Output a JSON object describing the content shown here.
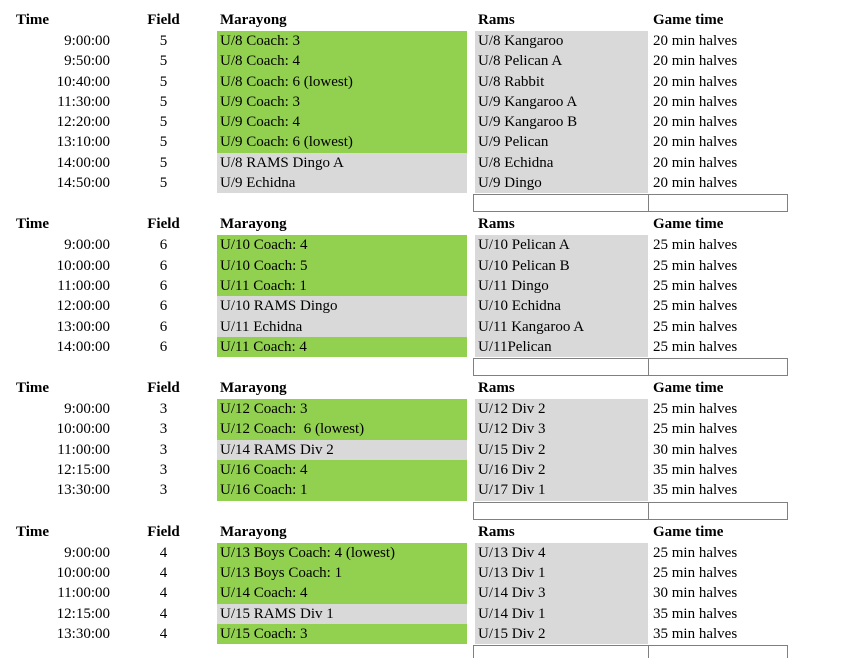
{
  "columns": {
    "time": "Time",
    "field": "Field",
    "marayong": "Marayong",
    "rams": "Rams",
    "game_time": "Game time"
  },
  "colors": {
    "home_highlight": "#92D050",
    "away_highlight": "#D9D9D9",
    "box_border": "#808080"
  },
  "sections": [
    {
      "field_number": "5",
      "rows": [
        {
          "time": "9:00:00",
          "field": "5",
          "marayong": "U/8 Coach: 3",
          "marayong_bg": "green",
          "rams": "U/8 Kangaroo",
          "game_time": "20 min halves"
        },
        {
          "time": "9:50:00",
          "field": "5",
          "marayong": "U/8 Coach: 4",
          "marayong_bg": "green",
          "rams": "U/8 Pelican A",
          "game_time": "20 min halves"
        },
        {
          "time": "10:40:00",
          "field": "5",
          "marayong": "U/8 Coach: 6 (lowest)",
          "marayong_bg": "green",
          "rams": "U/8 Rabbit",
          "game_time": "20 min halves"
        },
        {
          "time": "11:30:00",
          "field": "5",
          "marayong": "U/9 Coach: 3",
          "marayong_bg": "green",
          "rams": "U/9 Kangaroo A",
          "game_time": "20 min halves"
        },
        {
          "time": "12:20:00",
          "field": "5",
          "marayong": "U/9 Coach: 4",
          "marayong_bg": "green",
          "rams": "U/9 Kangaroo B",
          "game_time": "20 min halves"
        },
        {
          "time": "13:10:00",
          "field": "5",
          "marayong": "U/9 Coach: 6 (lowest)",
          "marayong_bg": "green",
          "rams": "U/9 Pelican",
          "game_time": "20 min halves"
        },
        {
          "time": "14:00:00",
          "field": "5",
          "marayong": "U/8 RAMS Dingo A",
          "marayong_bg": "gray",
          "rams": "U/8 Echidna",
          "game_time": "20 min halves"
        },
        {
          "time": "14:50:00",
          "field": "5",
          "marayong": "U/9 Echidna",
          "marayong_bg": "gray",
          "rams": "U/9 Dingo",
          "game_time": "20 min halves"
        }
      ]
    },
    {
      "field_number": "6",
      "rows": [
        {
          "time": "9:00:00",
          "field": "6",
          "marayong": "U/10 Coach: 4",
          "marayong_bg": "green",
          "rams": "U/10 Pelican A",
          "game_time": "25 min halves"
        },
        {
          "time": "10:00:00",
          "field": "6",
          "marayong": "U/10 Coach: 5",
          "marayong_bg": "green",
          "rams": "U/10 Pelican B",
          "game_time": "25 min halves"
        },
        {
          "time": "11:00:00",
          "field": "6",
          "marayong": "U/11 Coach: 1",
          "marayong_bg": "green",
          "rams": "U/11 Dingo",
          "game_time": "25 min halves"
        },
        {
          "time": "12:00:00",
          "field": "6",
          "marayong": "U/10 RAMS Dingo",
          "marayong_bg": "gray",
          "rams": "U/10 Echidna",
          "game_time": "25 min halves"
        },
        {
          "time": "13:00:00",
          "field": "6",
          "marayong": "U/11 Echidna",
          "marayong_bg": "gray",
          "rams": "U/11 Kangaroo A",
          "game_time": "25 min halves"
        },
        {
          "time": "14:00:00",
          "field": "6",
          "marayong": "U/11 Coach: 4",
          "marayong_bg": "green",
          "rams": "U/11Pelican",
          "game_time": "25 min halves"
        }
      ]
    },
    {
      "field_number": "3",
      "rows": [
        {
          "time": "9:00:00",
          "field": "3",
          "marayong": "U/12 Coach: 3",
          "marayong_bg": "green",
          "rams": "U/12 Div 2",
          "game_time": "25 min halves"
        },
        {
          "time": "10:00:00",
          "field": "3",
          "marayong": "U/12 Coach:  6 (lowest)",
          "marayong_bg": "green",
          "rams": "U/12 Div 3",
          "game_time": "25 min halves"
        },
        {
          "time": "11:00:00",
          "field": "3",
          "marayong": "U/14 RAMS Div 2",
          "marayong_bg": "gray",
          "rams": "U/15 Div 2",
          "game_time": "30 min halves"
        },
        {
          "time": "12:15:00",
          "field": "3",
          "marayong": "U/16 Coach: 4",
          "marayong_bg": "green",
          "rams": "U/16 Div 2",
          "game_time": "35 min halves"
        },
        {
          "time": "13:30:00",
          "field": "3",
          "marayong": "U/16 Coach: 1",
          "marayong_bg": "green",
          "rams": "U/17 Div 1",
          "game_time": "35 min halves"
        }
      ]
    },
    {
      "field_number": "4",
      "rows": [
        {
          "time": "9:00:00",
          "field": "4",
          "marayong": "U/13 Boys Coach: 4 (lowest)",
          "marayong_bg": "green",
          "rams": "U/13 Div 4",
          "game_time": "25 min halves"
        },
        {
          "time": "10:00:00",
          "field": "4",
          "marayong": "U/13 Boys Coach: 1",
          "marayong_bg": "green",
          "rams": "U/13 Div 1",
          "game_time": "25 min halves"
        },
        {
          "time": "11:00:00",
          "field": "4",
          "marayong": "U/14 Coach: 4",
          "marayong_bg": "green",
          "rams": "U/14 Div 3",
          "game_time": "30 min halves"
        },
        {
          "time": "12:15:00",
          "field": "4",
          "marayong": "U/15 RAMS Div 1",
          "marayong_bg": "gray",
          "rams": "U/14 Div 1",
          "game_time": "35 min halves"
        },
        {
          "time": "13:30:00",
          "field": "4",
          "marayong": "U/15 Coach: 3",
          "marayong_bg": "green",
          "rams": "U/15 Div 2",
          "game_time": "35 min halves"
        }
      ]
    }
  ],
  "empty_box": {
    "cell_1_value": "",
    "cell_2_value": ""
  }
}
